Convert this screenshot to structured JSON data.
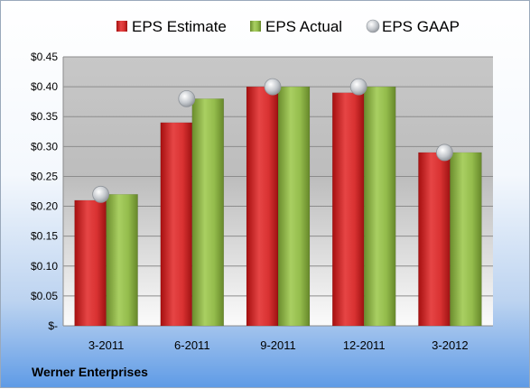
{
  "chart_data": {
    "type": "bar",
    "categories": [
      "3-2011",
      "6-2011",
      "9-2011",
      "12-2011",
      "3-2012"
    ],
    "series": [
      {
        "name": "EPS Estimate",
        "kind": "bar",
        "color": "#d42a2a",
        "values": [
          0.21,
          0.34,
          0.4,
          0.39,
          0.29
        ]
      },
      {
        "name": "EPS Actual",
        "kind": "bar",
        "color": "#8fb545",
        "values": [
          0.22,
          0.38,
          0.4,
          0.4,
          0.29
        ]
      },
      {
        "name": "EPS GAAP",
        "kind": "marker",
        "color": "#c0c4c8",
        "values": [
          0.22,
          0.38,
          0.4,
          0.4,
          0.29
        ]
      }
    ],
    "ylim": [
      0,
      0.45
    ],
    "yticks": [
      0,
      0.05,
      0.1,
      0.15,
      0.2,
      0.25,
      0.3,
      0.35,
      0.4,
      0.45
    ],
    "ytick_labels": [
      "$-",
      "$0.05",
      "$0.10",
      "$0.15",
      "$0.20",
      "$0.25",
      "$0.30",
      "$0.35",
      "$0.40",
      "$0.45"
    ],
    "legend_position": "top",
    "grid": true
  },
  "footer": {
    "company": "Werner Enterprises"
  }
}
